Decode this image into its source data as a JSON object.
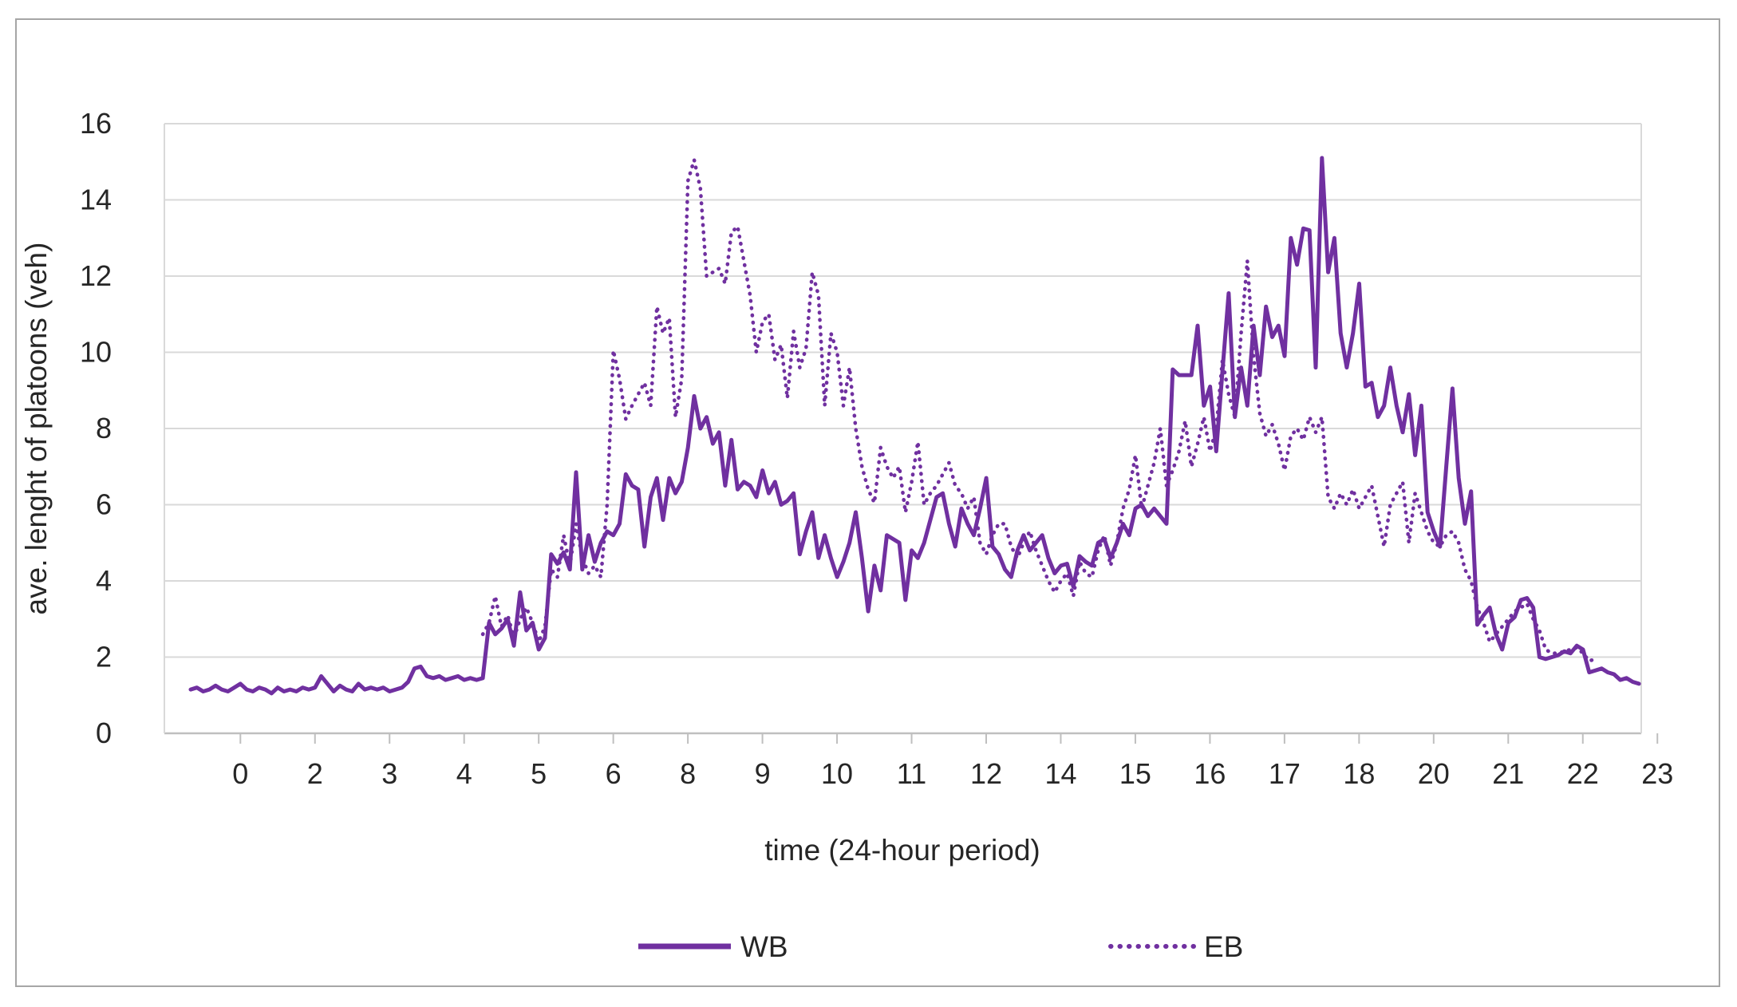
{
  "colors": {
    "series_purple": "#7030A0",
    "grid": "#D9D9D9",
    "axis": "#BFBFBF",
    "text": "#262626",
    "frame": "#A6A6A6",
    "background": "#FFFFFF"
  },
  "chart_data": {
    "type": "line",
    "title": "",
    "xlabel": "time (24-hour period)",
    "ylabel": "ave. lenght of platoons (veh)",
    "x_unit": "hours",
    "x_start_hour": 0,
    "x_step_hours": 0.1,
    "x_tick_labels": [
      "0",
      "2",
      "3",
      "4",
      "5",
      "6",
      "8",
      "9",
      "10",
      "11",
      "12",
      "14",
      "15",
      "16",
      "17",
      "18",
      "20",
      "21",
      "22",
      "23"
    ],
    "y_ticks": [
      0,
      2,
      4,
      6,
      8,
      10,
      12,
      14,
      16
    ],
    "ylim": [
      0,
      16
    ],
    "grid": "horizontal-only",
    "legend_position": "bottom-center",
    "series": [
      {
        "name": "WB",
        "style": "solid",
        "values": [
          1.15,
          1.2,
          1.1,
          1.15,
          1.25,
          1.15,
          1.1,
          1.2,
          1.3,
          1.15,
          1.1,
          1.2,
          1.15,
          1.05,
          1.2,
          1.1,
          1.15,
          1.1,
          1.2,
          1.15,
          1.2,
          1.5,
          1.3,
          1.1,
          1.25,
          1.15,
          1.1,
          1.3,
          1.15,
          1.2,
          1.15,
          1.2,
          1.1,
          1.15,
          1.2,
          1.35,
          1.7,
          1.75,
          1.5,
          1.45,
          1.5,
          1.4,
          1.45,
          1.5,
          1.4,
          1.45,
          1.4,
          1.45,
          2.9,
          2.6,
          2.75,
          3.0,
          2.3,
          3.7,
          2.7,
          2.9,
          2.2,
          2.5,
          4.7,
          4.45,
          4.75,
          4.3,
          6.85,
          4.3,
          5.2,
          4.5,
          5.0,
          5.3,
          5.2,
          5.5,
          6.8,
          6.5,
          6.4,
          4.9,
          6.2,
          6.7,
          5.6,
          6.7,
          6.3,
          6.6,
          7.5,
          8.85,
          8.0,
          8.3,
          7.6,
          7.9,
          6.5,
          7.7,
          6.4,
          6.6,
          6.5,
          6.2,
          6.9,
          6.3,
          6.6,
          6.0,
          6.1,
          6.3,
          4.7,
          5.3,
          5.8,
          4.6,
          5.2,
          4.6,
          4.1,
          4.5,
          5.0,
          5.8,
          4.6,
          3.2,
          4.4,
          3.75,
          5.2,
          5.1,
          5.0,
          3.5,
          4.8,
          4.6,
          5.0,
          5.6,
          6.2,
          6.3,
          5.5,
          4.9,
          5.9,
          5.5,
          5.2,
          5.9,
          6.7,
          4.9,
          4.7,
          4.3,
          4.1,
          4.8,
          5.2,
          4.8,
          5.0,
          5.2,
          4.6,
          4.2,
          4.4,
          4.45,
          3.85,
          4.65,
          4.5,
          4.4,
          5.0,
          5.1,
          4.6,
          5.0,
          5.5,
          5.2,
          5.9,
          6.0,
          5.7,
          5.9,
          5.7,
          5.5,
          9.55,
          9.4,
          9.4,
          9.4,
          10.7,
          8.6,
          9.1,
          7.4,
          9.5,
          11.55,
          8.3,
          9.6,
          8.6,
          10.7,
          9.4,
          11.2,
          10.4,
          10.7,
          9.9,
          13.0,
          12.3,
          13.25,
          13.2,
          9.6,
          15.1,
          12.1,
          13.0,
          10.5,
          9.6,
          10.5,
          11.8,
          9.1,
          9.2,
          8.3,
          8.6,
          9.6,
          8.6,
          7.9,
          8.9,
          7.3,
          8.6,
          5.8,
          5.3,
          4.9,
          7.0,
          9.05,
          6.7,
          5.5,
          6.35,
          2.85,
          3.1,
          3.3,
          2.6,
          2.2,
          2.9,
          3.05,
          3.5,
          3.55,
          3.3,
          2.0,
          1.95,
          2.0,
          2.05,
          2.15,
          2.1,
          2.3,
          2.2,
          1.6,
          1.65,
          1.7,
          1.6,
          1.55,
          1.4,
          1.45,
          1.35,
          1.3
        ]
      },
      {
        "name": "EB",
        "style": "dotted",
        "values": [
          null,
          null,
          null,
          null,
          null,
          null,
          null,
          null,
          null,
          null,
          null,
          null,
          null,
          null,
          null,
          null,
          null,
          null,
          null,
          null,
          null,
          null,
          null,
          null,
          null,
          null,
          null,
          null,
          null,
          null,
          null,
          null,
          null,
          null,
          null,
          null,
          null,
          null,
          null,
          null,
          null,
          null,
          null,
          null,
          null,
          null,
          null,
          2.6,
          2.9,
          3.6,
          2.8,
          3.1,
          2.5,
          3.0,
          3.3,
          2.9,
          2.4,
          2.8,
          4.3,
          4.1,
          5.2,
          4.4,
          5.5,
          4.6,
          4.2,
          4.4,
          4.1,
          6.0,
          10.05,
          9.3,
          8.25,
          8.6,
          8.9,
          9.2,
          8.6,
          11.2,
          10.5,
          10.9,
          8.3,
          9.3,
          14.5,
          15.05,
          14.3,
          12.0,
          12.1,
          12.2,
          11.8,
          13.15,
          13.3,
          12.4,
          11.5,
          10.0,
          10.8,
          11.0,
          9.8,
          10.2,
          8.8,
          10.55,
          9.6,
          10.1,
          12.1,
          11.5,
          8.6,
          10.5,
          10.0,
          8.6,
          9.6,
          8.0,
          7.0,
          6.4,
          6.05,
          7.5,
          7.0,
          6.7,
          7.0,
          5.8,
          6.6,
          7.65,
          6.0,
          6.3,
          6.5,
          6.8,
          7.1,
          6.5,
          6.3,
          5.9,
          6.2,
          5.0,
          4.7,
          5.2,
          5.5,
          5.5,
          4.9,
          4.6,
          5.0,
          5.3,
          4.8,
          4.4,
          4.0,
          3.7,
          4.0,
          4.2,
          3.6,
          4.5,
          4.2,
          4.1,
          4.8,
          5.2,
          4.4,
          5.0,
          5.9,
          6.4,
          7.3,
          5.9,
          6.5,
          7.1,
          8.0,
          6.5,
          6.9,
          7.4,
          8.2,
          7.0,
          7.6,
          8.3,
          7.4,
          8.0,
          9.8,
          8.9,
          8.3,
          10.5,
          12.4,
          9.9,
          8.4,
          7.8,
          8.1,
          7.6,
          6.9,
          7.8,
          8.0,
          7.7,
          8.3,
          7.9,
          8.3,
          6.2,
          5.9,
          6.3,
          6.0,
          6.4,
          5.9,
          6.2,
          6.5,
          5.7,
          4.9,
          6.0,
          6.3,
          6.6,
          5.0,
          6.3,
          5.8,
          5.3,
          5.0,
          4.9,
          5.2,
          5.3,
          5.0,
          4.3,
          4.0,
          3.3,
          2.9,
          2.4,
          2.6,
          2.8,
          3.0,
          3.2,
          3.3,
          3.4,
          3.0,
          2.7,
          2.2,
          2.1,
          2.1,
          2.15,
          2.2,
          2.25,
          2.1,
          1.9,
          1.95,
          null,
          null,
          null,
          null,
          null,
          null,
          null
        ]
      }
    ]
  }
}
